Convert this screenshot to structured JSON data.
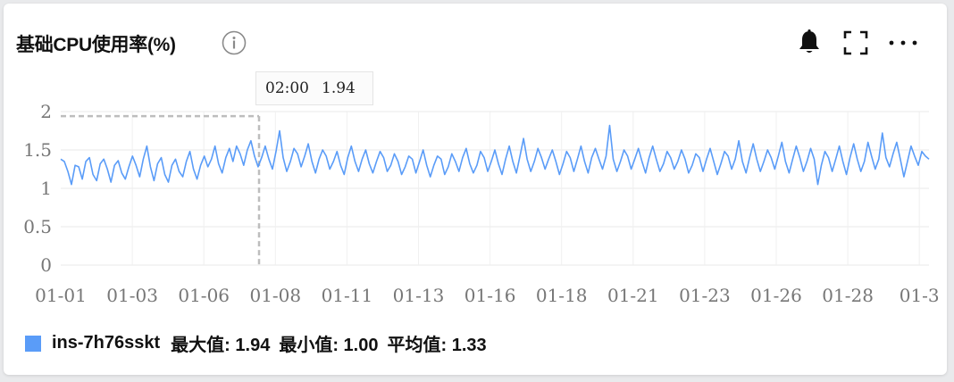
{
  "header": {
    "title": "基础CPU使用率(%)",
    "icons": [
      "info-icon",
      "bell-icon",
      "fullscreen-icon",
      "more-icon"
    ]
  },
  "tooltip": {
    "time": "02:00",
    "value": "1.94"
  },
  "legend": {
    "series_name": "ins-7h76sskt",
    "color": "#5a9cf8",
    "max_label": "最大值: 1.94",
    "min_label": "最小值: 1.00",
    "avg_label": "平均值: 1.33"
  },
  "chart_data": {
    "type": "line",
    "title": "基础CPU使用率(%)",
    "y_ticks": [
      "0",
      "0.5",
      "1",
      "1.5",
      "2"
    ],
    "ylim": [
      0,
      2
    ],
    "x_ticks": [
      "01-01",
      "01-03",
      "01-06",
      "01-08",
      "01-11",
      "01-13",
      "01-16",
      "01-18",
      "01-21",
      "01-23",
      "01-26",
      "01-28",
      "01-3"
    ],
    "xlim": [
      "01-01",
      "01-31"
    ],
    "grid": true,
    "series": [
      {
        "name": "ins-7h76sskt",
        "color": "#5a9cf8",
        "stats": {
          "max": 1.94,
          "min": 1.0,
          "avg": 1.33
        },
        "values": [
          1.38,
          1.35,
          1.22,
          1.05,
          1.3,
          1.28,
          1.12,
          1.35,
          1.4,
          1.18,
          1.1,
          1.32,
          1.38,
          1.25,
          1.08,
          1.3,
          1.36,
          1.2,
          1.12,
          1.28,
          1.42,
          1.3,
          1.15,
          1.38,
          1.55,
          1.28,
          1.1,
          1.32,
          1.4,
          1.18,
          1.08,
          1.3,
          1.38,
          1.22,
          1.15,
          1.35,
          1.48,
          1.25,
          1.12,
          1.3,
          1.42,
          1.28,
          1.38,
          1.55,
          1.32,
          1.2,
          1.4,
          1.52,
          1.35,
          1.55,
          1.45,
          1.3,
          1.5,
          1.62,
          1.42,
          1.28,
          1.4,
          1.55,
          1.38,
          1.25,
          1.48,
          1.75,
          1.4,
          1.22,
          1.35,
          1.52,
          1.45,
          1.28,
          1.42,
          1.58,
          1.35,
          1.2,
          1.38,
          1.5,
          1.42,
          1.25,
          1.35,
          1.48,
          1.3,
          1.18,
          1.4,
          1.55,
          1.35,
          1.22,
          1.38,
          1.5,
          1.32,
          1.2,
          1.35,
          1.48,
          1.4,
          1.22,
          1.3,
          1.45,
          1.35,
          1.18,
          1.28,
          1.42,
          1.38,
          1.2,
          1.35,
          1.5,
          1.3,
          1.15,
          1.3,
          1.42,
          1.38,
          1.18,
          1.28,
          1.45,
          1.35,
          1.22,
          1.4,
          1.52,
          1.32,
          1.2,
          1.3,
          1.48,
          1.4,
          1.22,
          1.35,
          1.5,
          1.32,
          1.18,
          1.38,
          1.55,
          1.35,
          1.2,
          1.42,
          1.65,
          1.38,
          1.22,
          1.35,
          1.52,
          1.4,
          1.25,
          1.38,
          1.5,
          1.35,
          1.18,
          1.32,
          1.48,
          1.4,
          1.22,
          1.38,
          1.55,
          1.35,
          1.2,
          1.4,
          1.52,
          1.38,
          1.25,
          1.42,
          1.82,
          1.38,
          1.22,
          1.35,
          1.5,
          1.42,
          1.25,
          1.38,
          1.52,
          1.35,
          1.2,
          1.4,
          1.55,
          1.38,
          1.22,
          1.32,
          1.48,
          1.4,
          1.25,
          1.35,
          1.5,
          1.38,
          1.2,
          1.3,
          1.45,
          1.4,
          1.22,
          1.38,
          1.52,
          1.35,
          1.18,
          1.32,
          1.48,
          1.42,
          1.25,
          1.38,
          1.62,
          1.35,
          1.2,
          1.4,
          1.58,
          1.38,
          1.22,
          1.35,
          1.5,
          1.4,
          1.25,
          1.42,
          1.6,
          1.35,
          1.2,
          1.38,
          1.55,
          1.4,
          1.22,
          1.35,
          1.52,
          1.38,
          1.05,
          1.3,
          1.48,
          1.4,
          1.22,
          1.38,
          1.55,
          1.35,
          1.18,
          1.4,
          1.58,
          1.38,
          1.22,
          1.35,
          1.6,
          1.42,
          1.25,
          1.38,
          1.72,
          1.4,
          1.28,
          1.45,
          1.6,
          1.38,
          1.15,
          1.35,
          1.55,
          1.42,
          1.3,
          1.48,
          1.42,
          1.38
        ]
      }
    ]
  }
}
